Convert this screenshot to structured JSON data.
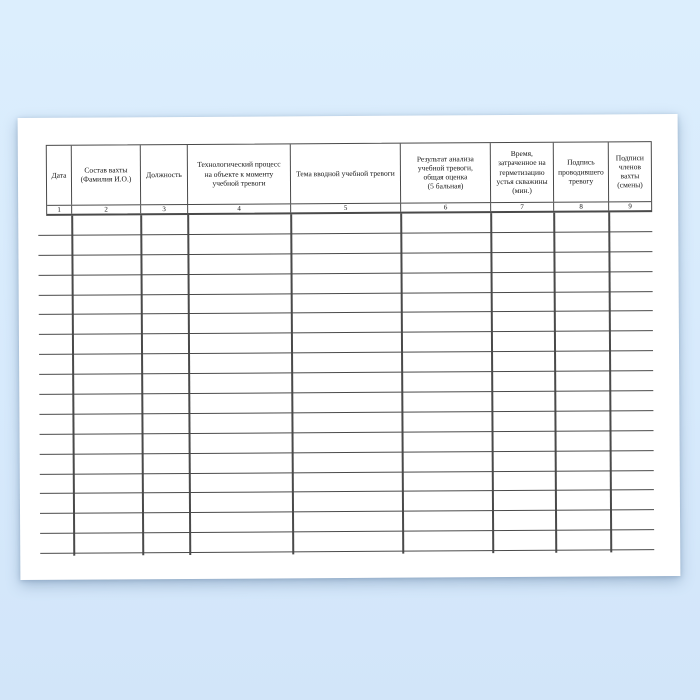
{
  "colors": {
    "background_top": "#dceefd",
    "background_bottom": "#d2e5f9",
    "page": "#ffffff",
    "line": "#4a4a4a",
    "text": "#141414"
  },
  "table": {
    "columns": [
      {
        "number": "1",
        "label": "Дата",
        "lines": [
          "Дата"
        ]
      },
      {
        "number": "2",
        "label": "Состав вахты (Фамилия И.О.)",
        "lines": [
          "Состав вахты",
          "(Фамилия И.О.)"
        ]
      },
      {
        "number": "3",
        "label": "Должность",
        "lines": [
          "Должность"
        ]
      },
      {
        "number": "4",
        "label": "Технологический процесс на объекте к моменту учебной тревоги",
        "lines": [
          "Технологический процесс",
          "на объекте к моменту",
          "учебной тревоги"
        ]
      },
      {
        "number": "5",
        "label": "Тема вводной учебной тревоги",
        "lines": [
          "Тема вводной учебной тревоги"
        ]
      },
      {
        "number": "6",
        "label": "Результат анализа учебной тревоги, общая оценка (5 бальная)",
        "lines": [
          "Результат анализа",
          "учебной тревоги,",
          "общая оценка",
          "(5 бальная)"
        ]
      },
      {
        "number": "7",
        "label": "Время, затраченное на герметизацию устья скважины (мин.)",
        "lines": [
          "Время,",
          "затраченное на",
          "герметизацию",
          "устья скважины",
          "(мин.)"
        ]
      },
      {
        "number": "8",
        "label": "Подпись проводившего тревогу",
        "lines": [
          "Подпись",
          "проводившего",
          "тревогу"
        ]
      },
      {
        "number": "9",
        "label": "Подписи членов вахты (смены)",
        "lines": [
          "Подписи",
          "членов",
          "вахты",
          "(смены)"
        ]
      }
    ],
    "blank_row_count": 17
  }
}
